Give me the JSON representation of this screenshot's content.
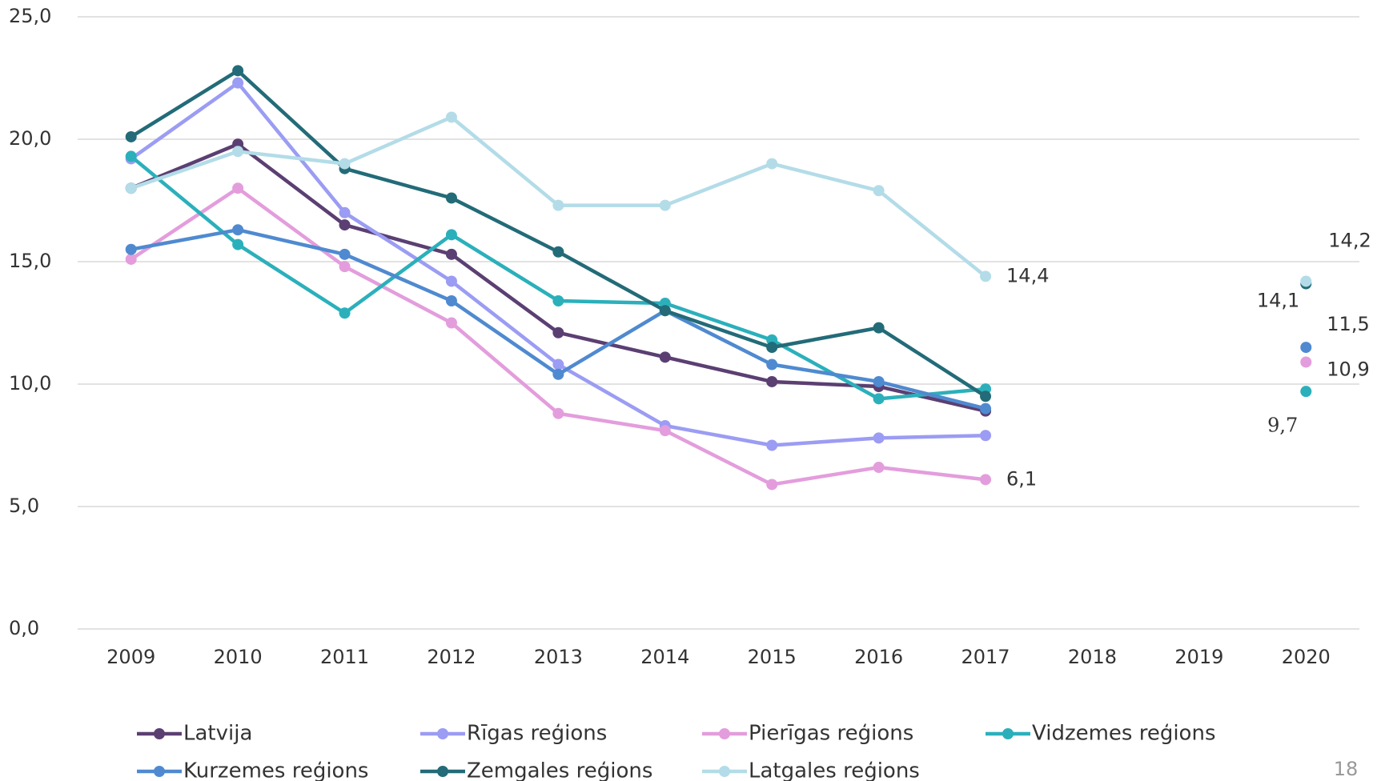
{
  "chart_data": {
    "type": "line",
    "categories": [
      "2009",
      "2010",
      "2011",
      "2012",
      "2013",
      "2014",
      "2015",
      "2016",
      "2017",
      "2018",
      "2019",
      "2020"
    ],
    "ylim": [
      0,
      25
    ],
    "yticks": [
      {
        "value": 0,
        "label": "0,0"
      },
      {
        "value": 5,
        "label": "5,0"
      },
      {
        "value": 10,
        "label": "10,0"
      },
      {
        "value": 15,
        "label": "15,0"
      },
      {
        "value": 20,
        "label": "20,0"
      },
      {
        "value": 25,
        "label": "25,0"
      }
    ],
    "grid": true,
    "legend": "bottom",
    "series": [
      {
        "name": "Latvija",
        "color": "#5b3f72",
        "values": [
          18.0,
          19.8,
          16.5,
          15.3,
          12.1,
          11.1,
          10.1,
          9.9,
          8.9,
          null,
          null,
          null
        ]
      },
      {
        "name": "Rīgas reģions",
        "color": "#9b9cf3",
        "values": [
          19.2,
          22.3,
          17.0,
          14.2,
          10.8,
          8.3,
          7.5,
          7.8,
          7.9,
          null,
          null,
          null
        ]
      },
      {
        "name": "Pierīgas reģions",
        "color": "#e39ddc",
        "values": [
          15.1,
          18.0,
          14.8,
          12.5,
          8.8,
          8.1,
          5.9,
          6.6,
          6.1,
          null,
          null,
          10.9
        ],
        "value_labels": [
          null,
          null,
          null,
          null,
          null,
          null,
          null,
          null,
          "6,1",
          null,
          null,
          "10,9"
        ]
      },
      {
        "name": "Vidzemes reģions",
        "color": "#2bb0bb",
        "values": [
          19.3,
          15.7,
          12.9,
          16.1,
          13.4,
          13.3,
          11.8,
          9.4,
          9.8,
          null,
          null,
          9.7
        ],
        "value_labels": [
          null,
          null,
          null,
          null,
          null,
          null,
          null,
          null,
          null,
          null,
          null,
          "9,7"
        ]
      },
      {
        "name": "Kurzemes reģions",
        "color": "#4f8ad0",
        "values": [
          15.5,
          16.3,
          15.3,
          13.4,
          10.4,
          13.0,
          10.8,
          10.1,
          9.0,
          null,
          null,
          11.5
        ],
        "value_labels": [
          null,
          null,
          null,
          null,
          null,
          null,
          null,
          null,
          null,
          null,
          null,
          "11,5"
        ]
      },
      {
        "name": "Zemgales reģions",
        "color": "#236b78",
        "values": [
          20.1,
          22.8,
          18.8,
          17.6,
          15.4,
          13.0,
          11.5,
          12.3,
          9.5,
          null,
          null,
          14.1
        ],
        "value_labels": [
          null,
          null,
          null,
          null,
          null,
          null,
          null,
          null,
          null,
          null,
          null,
          "14,1"
        ]
      },
      {
        "name": "Latgales reģions",
        "color": "#b3dce8",
        "values": [
          18.0,
          19.5,
          19.0,
          20.9,
          17.3,
          17.3,
          19.0,
          17.9,
          14.4,
          null,
          null,
          14.2
        ],
        "value_labels": [
          null,
          null,
          null,
          null,
          null,
          null,
          null,
          null,
          "14,4",
          null,
          null,
          "14,2"
        ]
      }
    ]
  },
  "page_number": "18"
}
